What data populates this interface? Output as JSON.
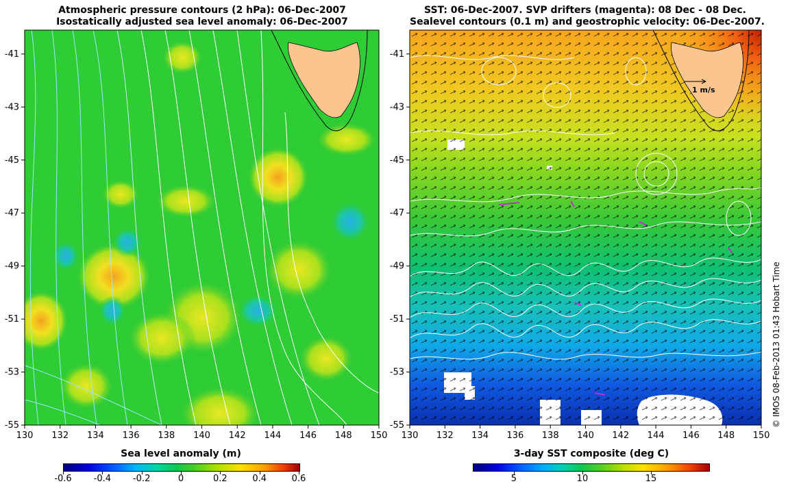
{
  "left_panel": {
    "title_line1": "Atmospheric pressure contours (2 hPa): 06-Dec-2007",
    "title_line2": "Isostatically adjusted sea level anomaly: 06-Dec-2007",
    "colorbar_title": "Sea level anomaly (m)",
    "colorbar_ticks": [
      "-0.6",
      "-0.4",
      "-0.2",
      "0",
      "0.2",
      "0.4",
      "0.6"
    ]
  },
  "right_panel": {
    "title_line1": "SST: 06-Dec-2007. SVP drifters (magenta): 08 Dec - 08 Dec.",
    "title_line2": "Sealevel contours (0.1 m) and geostrophic velocity: 06-Dec-2007.",
    "colorbar_title": "3-day SST composite (deg C)",
    "colorbar_ticks": [
      "5",
      "10",
      "15"
    ],
    "velocity_scale_label": "1 m/s"
  },
  "axes": {
    "lon_ticks": [
      "130",
      "132",
      "134",
      "136",
      "138",
      "140",
      "142",
      "144",
      "146",
      "148",
      "150"
    ],
    "lat_ticks": [
      "-41",
      "-43",
      "-45",
      "-47",
      "-49",
      "-51",
      "-53",
      "-55"
    ]
  },
  "credit": "© IMOS 08-Feb-2013 01:43 Hobart Time",
  "colors": {
    "land": "#fbc590",
    "background_sla": "#2ecc35",
    "sst_warm": "#f5a21a",
    "sst_cold": "#1060e0",
    "drifter": "#d020e0"
  }
}
